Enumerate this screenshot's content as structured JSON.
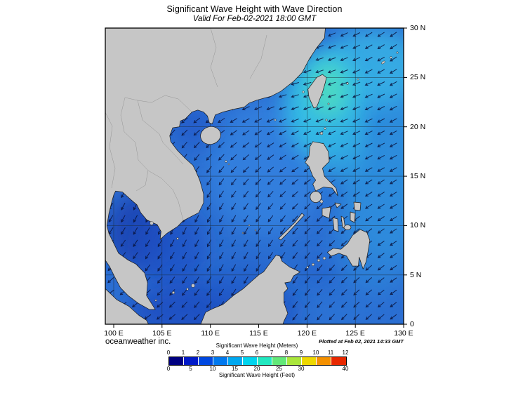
{
  "header": {
    "title": "Significant Wave Height with Wave Direction",
    "subtitle": "Valid For Feb-02-2021 18:00 GMT"
  },
  "map": {
    "x_tick_labels": [
      "100 E",
      "105 E",
      "110 E",
      "115 E",
      "120 E",
      "125 E",
      "130 E"
    ],
    "y_tick_labels": [
      "30 N",
      "25 N",
      "20 N",
      "15 N",
      "10 N",
      "5 N",
      "0"
    ],
    "sea_color": "#2c6fd2",
    "land_color": "#c6c6c6",
    "grid_color": "#1c2b3a",
    "arrow_color": "#0a1540",
    "high_wave_color": "#55e2b8",
    "low_wave_color": "#1a44b4"
  },
  "legend": {
    "meters_title": "Significant Wave Height (Meters)",
    "feet_title": "Significant Wave Height (Feet)",
    "meters_ticks": [
      "0",
      "1",
      "2",
      "3",
      "4",
      "5",
      "6",
      "7",
      "8",
      "9",
      "10",
      "11",
      "12"
    ],
    "feet_ticks": [
      "0",
      "5",
      "10",
      "15",
      "20",
      "25",
      "30",
      "40"
    ],
    "colors": [
      "#000080",
      "#001ac8",
      "#0048e0",
      "#0078ee",
      "#00a8f0",
      "#00d4ee",
      "#22e8c0",
      "#62e878",
      "#aae63c",
      "#eed800",
      "#f49000",
      "#e82800"
    ]
  },
  "footer": {
    "credit": "oceanweather inc.",
    "plotted": "Plotted at Feb 02, 2021 14:33 GMT"
  }
}
